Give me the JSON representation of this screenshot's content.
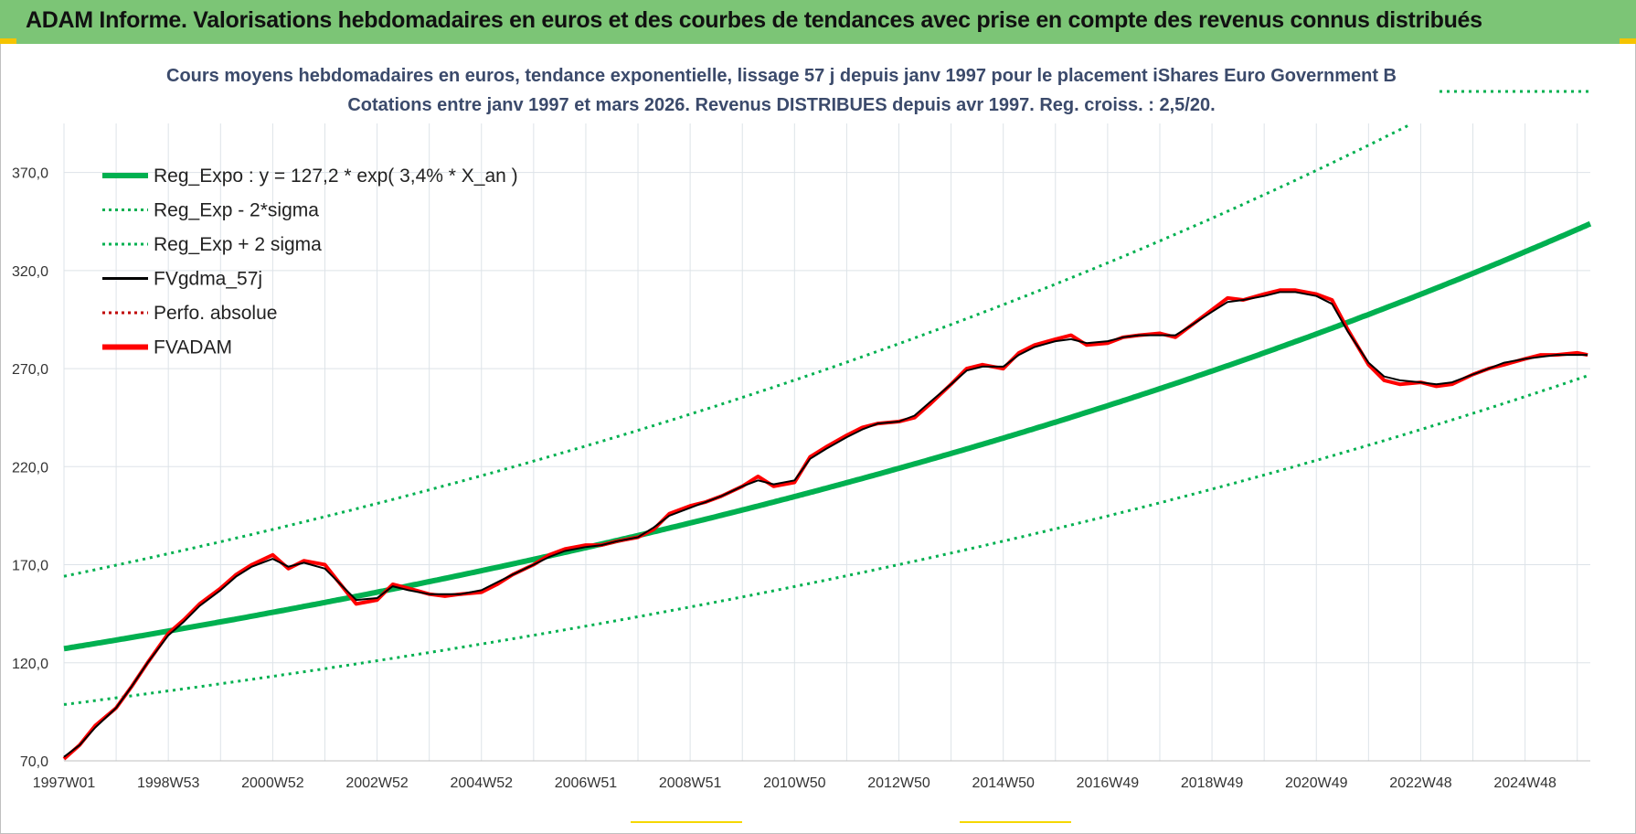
{
  "banner": {
    "text": "ADAM Informe. Valorisations hebdomadaires en euros et des courbes de tendances avec prise en compte des revenus connus distribués",
    "color": "#7cc576"
  },
  "chart_data": {
    "type": "line",
    "title": "Cours moyens hebdomadaires en euros, tendance exponentielle, lissage 57 j depuis janv 1997 pour le placement iShares Euro Government B",
    "subtitle": "Cotations entre janv 1997 et mars 2026. Revenus DISTRIBUES depuis avr 1997. Reg. croiss. : 2,5/20.",
    "xlabel": "",
    "ylabel": "",
    "xlim": [
      1997.0,
      2026.25
    ],
    "ylim": [
      70,
      395
    ],
    "y_ticks": [
      "370,0",
      "320,0",
      "270,0",
      "220,0",
      "170,0",
      "120,0",
      "70,0"
    ],
    "y_tick_values": [
      370,
      320,
      270,
      220,
      170,
      120,
      70
    ],
    "x_ticks": [
      "1997W01",
      "1998W53",
      "2000W52",
      "2002W52",
      "2004W52",
      "2006W51",
      "2008W51",
      "2010W50",
      "2012W50",
      "2014W50",
      "2016W49",
      "2018W49",
      "2020W49",
      "2022W48",
      "2024W48"
    ],
    "x_tick_values": [
      1997.0,
      1999.0,
      2001.0,
      2003.0,
      2005.0,
      2007.0,
      2009.0,
      2011.0,
      2013.0,
      2015.0,
      2017.0,
      2019.0,
      2021.0,
      2023.0,
      2025.0
    ],
    "grid": true,
    "legend_position": "top-left",
    "legend": [
      {
        "label": "Reg_Expo : y = 127,2 * exp( 3,4% *  X_an )",
        "color": "#00b050",
        "style": "solid-thick"
      },
      {
        "label": "Reg_Exp - 2*sigma",
        "color": "#00b050",
        "style": "dotted"
      },
      {
        "label": "Reg_Exp + 2 sigma",
        "color": "#00b050",
        "style": "dotted"
      },
      {
        "label": "FVgdma_57j",
        "color": "#000000",
        "style": "solid"
      },
      {
        "label": "Perfo. absolue",
        "color": "#c00000",
        "style": "dotted"
      },
      {
        "label": "FVADAM",
        "color": "#ff0000",
        "style": "solid-thick"
      }
    ],
    "regression": {
      "a": 127.2,
      "rate": 0.034,
      "lower_factor": 0.776,
      "upper_factor": 1.29
    },
    "series": [
      {
        "name": "FVADAM",
        "x": [
          1997.0,
          1997.3,
          1997.6,
          1998.0,
          1998.3,
          1998.6,
          1999.0,
          1999.3,
          1999.6,
          2000.0,
          2000.3,
          2000.6,
          2001.0,
          2001.3,
          2001.6,
          2002.0,
          2002.3,
          2002.6,
          2003.0,
          2003.3,
          2003.6,
          2004.0,
          2004.3,
          2004.6,
          2005.0,
          2005.3,
          2005.6,
          2006.0,
          2006.3,
          2006.6,
          2007.0,
          2007.3,
          2007.6,
          2008.0,
          2008.3,
          2008.6,
          2009.0,
          2009.3,
          2009.6,
          2010.0,
          2010.3,
          2010.6,
          2011.0,
          2011.3,
          2011.6,
          2012.0,
          2012.3,
          2012.6,
          2013.0,
          2013.3,
          2013.6,
          2014.0,
          2014.3,
          2014.6,
          2015.0,
          2015.3,
          2015.6,
          2016.0,
          2016.3,
          2016.6,
          2017.0,
          2017.3,
          2017.6,
          2018.0,
          2018.3,
          2018.6,
          2019.0,
          2019.3,
          2019.6,
          2020.0,
          2020.3,
          2020.6,
          2021.0,
          2021.3,
          2021.6,
          2022.0,
          2022.3,
          2022.6,
          2023.0,
          2023.3,
          2023.6,
          2024.0,
          2024.3,
          2024.6,
          2025.0,
          2025.3,
          2025.6,
          2026.0,
          2026.2
        ],
        "values": [
          71,
          78,
          88,
          97,
          108,
          120,
          135,
          142,
          150,
          158,
          165,
          170,
          175,
          168,
          172,
          170,
          160,
          150,
          152,
          160,
          158,
          155,
          154,
          155,
          156,
          160,
          165,
          170,
          175,
          178,
          180,
          180,
          182,
          184,
          188,
          196,
          200,
          202,
          205,
          210,
          215,
          210,
          212,
          225,
          230,
          236,
          240,
          242,
          243,
          245,
          252,
          262,
          270,
          272,
          270,
          278,
          282,
          285,
          287,
          282,
          283,
          286,
          287,
          288,
          286,
          292,
          300,
          306,
          305,
          308,
          310,
          310,
          308,
          305,
          290,
          272,
          264,
          262,
          263,
          261,
          262,
          267,
          270,
          272,
          275,
          277,
          277,
          278,
          277
        ]
      },
      {
        "name": "FVgdma_57j",
        "x": [
          1997.0,
          1997.3,
          1997.6,
          1998.0,
          1998.3,
          1998.6,
          1999.0,
          1999.3,
          1999.6,
          2000.0,
          2000.3,
          2000.6,
          2001.0,
          2001.3,
          2001.6,
          2002.0,
          2002.3,
          2002.6,
          2003.0,
          2003.3,
          2003.6,
          2004.0,
          2004.3,
          2004.6,
          2005.0,
          2005.3,
          2005.6,
          2006.0,
          2006.3,
          2006.6,
          2007.0,
          2007.3,
          2007.6,
          2008.0,
          2008.3,
          2008.6,
          2009.0,
          2009.3,
          2009.6,
          2010.0,
          2010.3,
          2010.6,
          2011.0,
          2011.3,
          2011.6,
          2012.0,
          2012.3,
          2012.6,
          2013.0,
          2013.3,
          2013.6,
          2014.0,
          2014.3,
          2014.6,
          2015.0,
          2015.3,
          2015.6,
          2016.0,
          2016.3,
          2016.6,
          2017.0,
          2017.3,
          2017.6,
          2018.0,
          2018.3,
          2018.6,
          2019.0,
          2019.3,
          2019.6,
          2020.0,
          2020.3,
          2020.6,
          2021.0,
          2021.3,
          2021.6,
          2022.0,
          2022.3,
          2022.6,
          2023.0,
          2023.3,
          2023.6,
          2024.0,
          2024.3,
          2024.6,
          2025.0,
          2025.3,
          2025.6,
          2026.0,
          2026.2
        ],
        "values": [
          72,
          78,
          87,
          97,
          108,
          120,
          134,
          141,
          149,
          157,
          164,
          169,
          173,
          169,
          171,
          168,
          160,
          152,
          153,
          159,
          157,
          155,
          155,
          155,
          157,
          161,
          165,
          170,
          174,
          177,
          179,
          180,
          182,
          184,
          189,
          195,
          199,
          202,
          205,
          210,
          213,
          211,
          213,
          224,
          229,
          235,
          239,
          242,
          243,
          246,
          253,
          262,
          269,
          271,
          271,
          277,
          281,
          284,
          285,
          283,
          284,
          286,
          287,
          287,
          287,
          292,
          299,
          304,
          305,
          307,
          309,
          309,
          307,
          303,
          289,
          273,
          266,
          264,
          263,
          262,
          263,
          267,
          270,
          273,
          275,
          276,
          277,
          277,
          277
        ]
      }
    ]
  }
}
